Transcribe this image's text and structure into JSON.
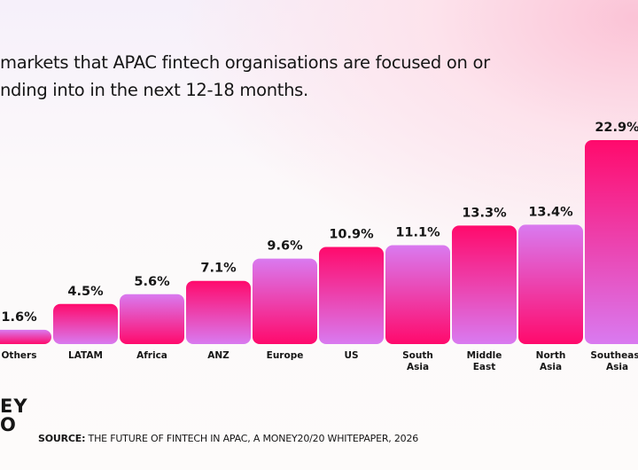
{
  "title": {
    "line1": "markets that APAC fintech organisations are focused on or",
    "line2": "nding into in the next 12-18 months."
  },
  "chart_data": {
    "type": "bar",
    "categories": [
      [
        "Others"
      ],
      [
        "LATAM"
      ],
      [
        "Africa"
      ],
      [
        "ANZ"
      ],
      [
        "Europe"
      ],
      [
        "US"
      ],
      [
        "South",
        "Asia"
      ],
      [
        "Middle",
        "East"
      ],
      [
        "North",
        "Asia"
      ],
      [
        "Southeast",
        "Asia"
      ]
    ],
    "values": [
      1.6,
      4.5,
      5.6,
      7.1,
      9.6,
      10.9,
      11.1,
      13.3,
      13.4,
      22.9
    ],
    "value_labels": [
      "1.6%",
      "4.5%",
      "5.6%",
      "7.1%",
      "9.6%",
      "10.9%",
      "11.1%",
      "13.3%",
      "13.4%",
      "22.9%"
    ],
    "ylim": [
      0,
      22.9
    ],
    "grid": false,
    "colors": {
      "pink": "#ff0a6c",
      "violet": "#d97af0"
    }
  },
  "logo": {
    "line1": "EY",
    "line2": "O"
  },
  "source": {
    "label": "SOURCE:",
    "text": " THE FUTURE OF FINTECH IN APAC, A MONEY20/20 WHITEPAPER, 2026"
  }
}
